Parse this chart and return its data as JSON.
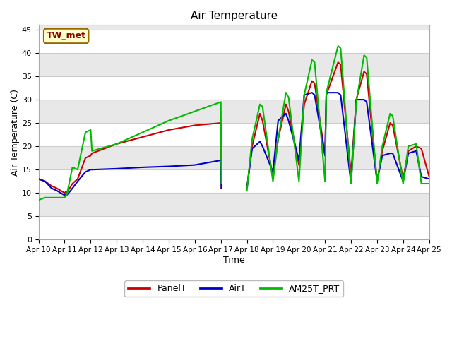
{
  "title": "Air Temperature",
  "xlabel": "Time",
  "ylabel": "Air Temperature (C)",
  "ylim": [
    0,
    46
  ],
  "yticks": [
    0,
    5,
    10,
    15,
    20,
    25,
    30,
    35,
    40,
    45
  ],
  "axes_facecolor": "#e8e8e8",
  "fig_facecolor": "#ffffff",
  "annotation_text": "TW_met",
  "annotation_bg": "#ffffcc",
  "annotation_border": "#8b0000",
  "legend_entries": [
    "PanelT",
    "AirT",
    "AM25T_PRT"
  ],
  "line_colors": [
    "#cc0000",
    "#0000cc",
    "#00bb00"
  ],
  "x_days": [
    10,
    11,
    12,
    13,
    14,
    15,
    16,
    17,
    18,
    19,
    20,
    21,
    22,
    23,
    24,
    25
  ],
  "PanelT_x": [
    10.0,
    10.25,
    10.5,
    10.7,
    11.0,
    11.05,
    11.08,
    11.3,
    11.5,
    11.8,
    12.0,
    12.05,
    13.0,
    14.0,
    15.0,
    16.0,
    17.0,
    17.02,
    null,
    18.0,
    18.2,
    18.5,
    18.6,
    19.0,
    19.2,
    19.5,
    19.6,
    20.0,
    20.2,
    20.5,
    20.6,
    21.0,
    21.05,
    21.5,
    21.6,
    22.0,
    22.2,
    22.5,
    22.6,
    23.0,
    23.2,
    23.5,
    23.6,
    24.0,
    24.2,
    24.5,
    24.7,
    25.0
  ],
  "PanelT_y": [
    13.0,
    12.5,
    11.5,
    11.0,
    10.0,
    10.3,
    10.0,
    12.0,
    13.0,
    17.5,
    18.0,
    18.5,
    20.5,
    22.0,
    23.5,
    24.5,
    25.0,
    11.0,
    null,
    11.0,
    20.0,
    27.0,
    25.5,
    13.5,
    21.5,
    29.0,
    27.5,
    16.0,
    29.0,
    34.0,
    33.5,
    18.0,
    31.0,
    38.0,
    37.5,
    14.0,
    30.0,
    36.0,
    35.5,
    12.5,
    19.0,
    25.0,
    24.5,
    13.0,
    19.0,
    20.0,
    19.5,
    13.5
  ],
  "AirT_x": [
    10.0,
    10.25,
    10.5,
    10.7,
    11.0,
    11.05,
    11.08,
    11.3,
    11.5,
    11.8,
    12.0,
    12.05,
    13.0,
    14.0,
    15.0,
    16.0,
    17.0,
    17.02,
    null,
    18.0,
    18.2,
    18.5,
    18.6,
    19.0,
    19.2,
    19.5,
    19.6,
    20.0,
    20.2,
    20.5,
    20.6,
    21.0,
    21.05,
    21.5,
    21.6,
    22.0,
    22.2,
    22.5,
    22.6,
    23.0,
    23.2,
    23.5,
    23.6,
    24.0,
    24.2,
    24.5,
    24.7,
    25.0
  ],
  "AirT_y": [
    13.0,
    12.5,
    11.0,
    10.5,
    9.5,
    9.8,
    9.5,
    11.0,
    12.5,
    14.5,
    15.0,
    15.0,
    15.2,
    15.5,
    15.7,
    16.0,
    17.0,
    11.0,
    null,
    11.0,
    19.5,
    21.0,
    20.0,
    14.5,
    25.5,
    27.0,
    25.5,
    17.0,
    31.0,
    31.5,
    31.0,
    18.0,
    31.5,
    31.5,
    31.0,
    12.0,
    30.0,
    30.0,
    29.5,
    12.5,
    18.0,
    18.5,
    18.5,
    12.5,
    18.5,
    19.0,
    13.5,
    13.0
  ],
  "AM25T_x": [
    10.0,
    10.25,
    10.5,
    10.7,
    11.0,
    11.05,
    11.08,
    11.3,
    11.5,
    11.8,
    12.0,
    12.05,
    13.0,
    14.0,
    15.0,
    16.0,
    17.0,
    17.02,
    null,
    18.0,
    18.2,
    18.5,
    18.6,
    19.0,
    19.2,
    19.5,
    19.6,
    20.0,
    20.2,
    20.5,
    20.6,
    21.0,
    21.05,
    21.5,
    21.6,
    22.0,
    22.2,
    22.5,
    22.6,
    23.0,
    23.2,
    23.5,
    23.6,
    24.0,
    24.2,
    24.5,
    24.7,
    25.0
  ],
  "AM25T_y": [
    8.5,
    9.0,
    9.0,
    9.0,
    9.0,
    9.5,
    9.5,
    15.5,
    15.0,
    23.0,
    23.5,
    19.0,
    20.5,
    23.0,
    25.5,
    27.5,
    29.5,
    12.0,
    null,
    10.5,
    21.5,
    29.0,
    28.5,
    12.5,
    21.5,
    31.5,
    30.5,
    12.5,
    31.0,
    38.5,
    38.0,
    12.5,
    31.5,
    41.5,
    41.0,
    12.0,
    29.5,
    39.5,
    39.0,
    12.0,
    20.0,
    27.0,
    26.5,
    12.0,
    20.0,
    20.5,
    12.0,
    12.0
  ]
}
